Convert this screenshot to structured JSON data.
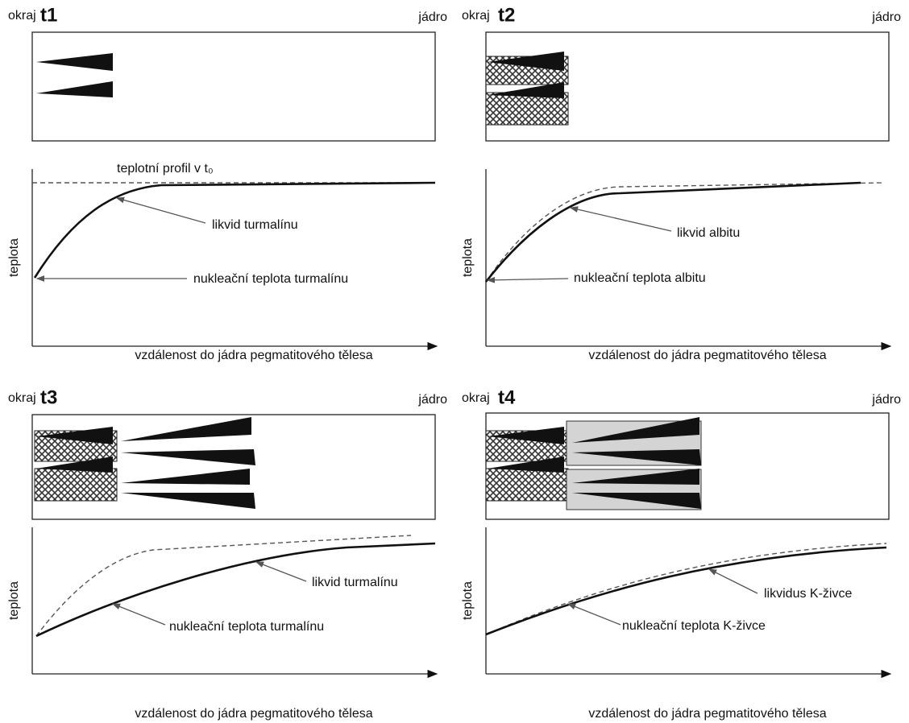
{
  "panels": [
    {
      "edge": "okraj",
      "time": "t1",
      "core": "jádro",
      "y_axis_label": "teplota",
      "x_axis_label": "vzdálenost do jádra pegmatitového tělesa",
      "annotations": [
        "teplotní profil v t₀",
        "likvid turmalínu",
        "nukleační teplota turmalínu"
      ]
    },
    {
      "edge": "okraj",
      "time": "t2",
      "core": "jádro",
      "y_axis_label": "teplota",
      "x_axis_label": "vzdálenost do jádra pegmatitového tělesa",
      "annotations": [
        "likvid albitu",
        "nukleační teplota albitu"
      ]
    },
    {
      "edge": "okraj",
      "time": "t3",
      "core": "jádro",
      "y_axis_label": "teplota",
      "x_axis_label": "vzdálenost do jádra pegmatitového tělesa",
      "annotations": [
        "likvid turmalínu",
        "nukleační teplota turmalínu"
      ]
    },
    {
      "edge": "okraj",
      "time": "t4",
      "core": "jádro",
      "y_axis_label": "teplota",
      "x_axis_label": "vzdálenost do jádra pegmatitového tělesa",
      "annotations": [
        "likvidus K-živce",
        "nukleační teplota K-živce"
      ]
    }
  ]
}
